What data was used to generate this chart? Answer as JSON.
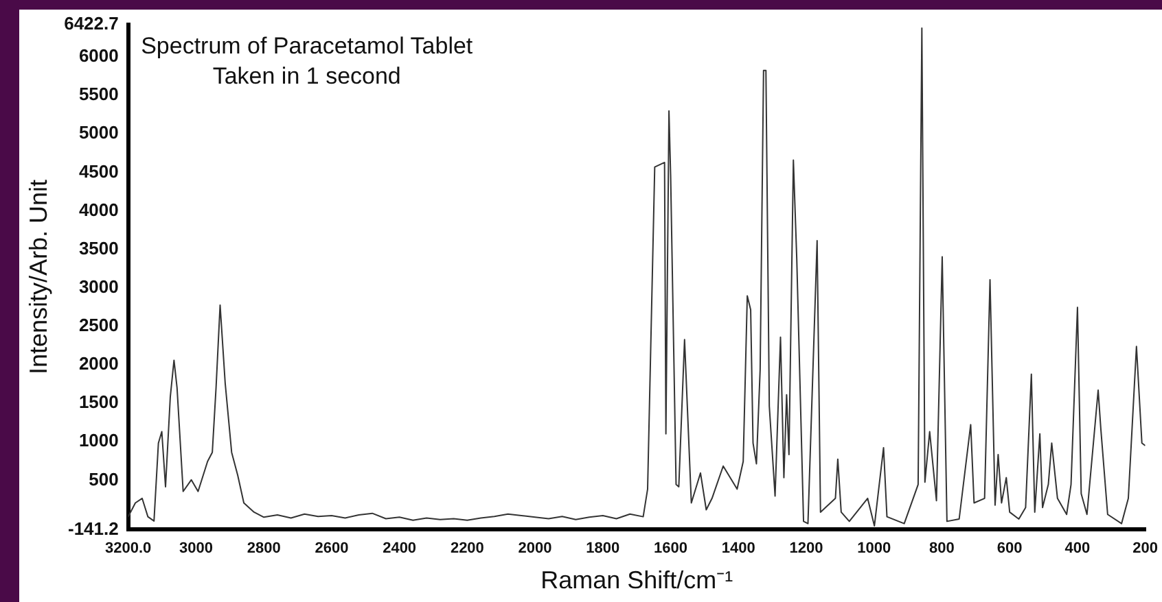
{
  "chart_data": {
    "type": "line",
    "title": "Spectrum of Paracetamol Tablet",
    "subtitle": "Taken in 1 second",
    "xlabel": "Raman Shift/cm⁻¹",
    "ylabel": "Intensity/Arb. Unit",
    "x": [
      3200,
      3179,
      3159,
      3142,
      3124,
      3111,
      3101,
      3090,
      3076,
      3065,
      3056,
      3038,
      3014,
      2994,
      2966,
      2952,
      2941,
      2929,
      2914,
      2895,
      2877,
      2859,
      2829,
      2800,
      2760,
      2720,
      2680,
      2640,
      2600,
      2560,
      2520,
      2480,
      2440,
      2400,
      2360,
      2320,
      2280,
      2240,
      2200,
      2160,
      2120,
      2080,
      2040,
      2000,
      1960,
      1920,
      1880,
      1840,
      1800,
      1760,
      1720,
      1681,
      1668,
      1647,
      1618,
      1614,
      1605,
      1600,
      1584,
      1576,
      1559,
      1539,
      1512,
      1495,
      1478,
      1445,
      1404,
      1386,
      1374,
      1364,
      1357,
      1347,
      1336,
      1326,
      1319,
      1309,
      1292,
      1276,
      1266,
      1258,
      1251,
      1238,
      1228,
      1208,
      1195,
      1168,
      1158,
      1114,
      1107,
      1097,
      1073,
      1019,
      999,
      972,
      962,
      911,
      870,
      859,
      850,
      836,
      816,
      799,
      785,
      749,
      715,
      705,
      674,
      658,
      643,
      634,
      624,
      610,
      600,
      573,
      553,
      536,
      526,
      511,
      503,
      486,
      476,
      459,
      432,
      419,
      400,
      389,
      372,
      339,
      331,
      311,
      270,
      250,
      226,
      210,
      200
    ],
    "series": [
      {
        "color": "#333333",
        "values": [
          26,
          205,
          265,
          26,
          -30,
          983,
          1132,
          415,
          1580,
          2059,
          1700,
          355,
          505,
          355,
          744,
          863,
          1700,
          2776,
          1760,
          863,
          564,
          205,
          86,
          20,
          50,
          10,
          60,
          30,
          40,
          10,
          50,
          70,
          0,
          20,
          -20,
          10,
          -10,
          0,
          -20,
          10,
          30,
          60,
          40,
          20,
          0,
          30,
          -10,
          20,
          40,
          0,
          60,
          26,
          385,
          4569,
          4629,
          1103,
          5299,
          4450,
          445,
          415,
          2328,
          205,
          594,
          116,
          265,
          684,
          385,
          744,
          2896,
          2716,
          983,
          714,
          1939,
          5825,
          5825,
          1461,
          295,
          2358,
          534,
          1610,
          834,
          4659,
          3374,
          -34,
          -63,
          3613,
          86,
          265,
          774,
          86,
          -34,
          265,
          -93,
          923,
          26,
          -63,
          445,
          6375,
          475,
          1132,
          235,
          3404,
          -34,
          -4,
          1222,
          205,
          265,
          3105,
          176,
          834,
          205,
          534,
          86,
          -4,
          146,
          1879,
          86,
          1102,
          146,
          445,
          983,
          265,
          56,
          445,
          2746,
          325,
          56,
          1670,
          1162,
          56,
          -63,
          265,
          2239,
          983,
          950
        ]
      }
    ],
    "xlim": [
      3200,
      200
    ],
    "ylim": [
      -141.2,
      6422.7
    ],
    "xticks": [
      {
        "value": 3200,
        "label": "3200.0"
      },
      3000,
      2800,
      2600,
      2400,
      2200,
      2000,
      1800,
      1600,
      1400,
      1200,
      1000,
      800,
      600,
      400,
      200
    ],
    "yticks": [
      {
        "value": -141.2,
        "label": "-141.2"
      },
      500,
      1000,
      1500,
      2000,
      2500,
      3000,
      3500,
      4000,
      4500,
      5000,
      5500,
      6000,
      {
        "value": 6422.7,
        "label": "6422.7"
      }
    ],
    "grid": false,
    "legend": false,
    "marker": "none",
    "line_style": "solid"
  }
}
